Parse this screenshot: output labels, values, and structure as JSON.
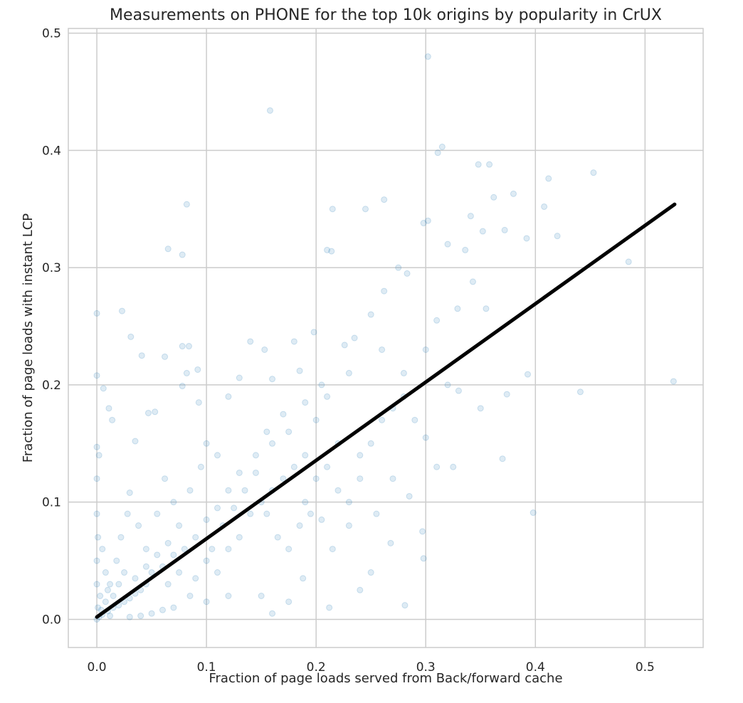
{
  "chart_data": {
    "type": "scatter",
    "title": "Measurements on PHONE for the top 10k origins by popularity in CrUX",
    "xlabel": "Fraction of page loads served from Back/forward cache",
    "ylabel": "Fraction of page loads with instant LCP",
    "xlim": [
      -0.026,
      0.553
    ],
    "ylim": [
      -0.024,
      0.504
    ],
    "xticks": [
      "0.0",
      "0.1",
      "0.2",
      "0.3",
      "0.4",
      "0.5"
    ],
    "yticks": [
      "0.0",
      "0.1",
      "0.2",
      "0.3",
      "0.4",
      "0.5"
    ],
    "grid": true,
    "marker_color": "#1f77b4",
    "marker_alpha": 0.15,
    "line_color": "#000000",
    "regression_line": [
      [
        0.0,
        0.002
      ],
      [
        0.527,
        0.354
      ]
    ],
    "points": [
      [
        0.302,
        0.48
      ],
      [
        0.158,
        0.434
      ],
      [
        0.315,
        0.403
      ],
      [
        0.311,
        0.398
      ],
      [
        0.348,
        0.388
      ],
      [
        0.358,
        0.388
      ],
      [
        0.453,
        0.381
      ],
      [
        0.412,
        0.376
      ],
      [
        0.082,
        0.354
      ],
      [
        0.262,
        0.358
      ],
      [
        0.245,
        0.35
      ],
      [
        0.215,
        0.35
      ],
      [
        0.38,
        0.363
      ],
      [
        0.362,
        0.36
      ],
      [
        0.408,
        0.352
      ],
      [
        0.42,
        0.327
      ],
      [
        0.392,
        0.325
      ],
      [
        0.065,
        0.316
      ],
      [
        0.078,
        0.311
      ],
      [
        0.21,
        0.315
      ],
      [
        0.214,
        0.314
      ],
      [
        0.302,
        0.34
      ],
      [
        0.298,
        0.338
      ],
      [
        0.0,
        0.261
      ],
      [
        0.023,
        0.263
      ],
      [
        0.031,
        0.241
      ],
      [
        0.041,
        0.225
      ],
      [
        0.062,
        0.224
      ],
      [
        0.078,
        0.233
      ],
      [
        0.084,
        0.233
      ],
      [
        0.526,
        0.203
      ],
      [
        0.441,
        0.194
      ],
      [
        0.485,
        0.305
      ],
      [
        0.398,
        0.091
      ],
      [
        0.37,
        0.137
      ],
      [
        0.281,
        0.012
      ],
      [
        0.298,
        0.052
      ],
      [
        0.297,
        0.075
      ],
      [
        0.374,
        0.192
      ],
      [
        0.393,
        0.209
      ],
      [
        0.0,
        0.208
      ],
      [
        0.006,
        0.197
      ],
      [
        0.011,
        0.18
      ],
      [
        0.014,
        0.17
      ],
      [
        0.035,
        0.152
      ],
      [
        0.047,
        0.176
      ],
      [
        0.053,
        0.177
      ],
      [
        0.341,
        0.344
      ],
      [
        0.352,
        0.331
      ],
      [
        0.372,
        0.332
      ],
      [
        0.336,
        0.315
      ],
      [
        0.343,
        0.288
      ],
      [
        0.32,
        0.32
      ],
      [
        0.329,
        0.265
      ],
      [
        0.355,
        0.265
      ],
      [
        0.31,
        0.255
      ],
      [
        0.283,
        0.295
      ],
      [
        0.275,
        0.3
      ],
      [
        0.262,
        0.28
      ],
      [
        0.25,
        0.26
      ],
      [
        0.235,
        0.24
      ],
      [
        0.226,
        0.234
      ],
      [
        0.198,
        0.245
      ],
      [
        0.18,
        0.237
      ],
      [
        0.153,
        0.23
      ],
      [
        0.14,
        0.237
      ],
      [
        0.13,
        0.206
      ],
      [
        0.092,
        0.213
      ],
      [
        0.082,
        0.21
      ],
      [
        0.078,
        0.199
      ],
      [
        0.093,
        0.185
      ],
      [
        0.12,
        0.19
      ],
      [
        0.16,
        0.205
      ],
      [
        0.185,
        0.212
      ],
      [
        0.205,
        0.2
      ],
      [
        0.23,
        0.21
      ],
      [
        0.26,
        0.23
      ],
      [
        0.28,
        0.21
      ],
      [
        0.3,
        0.23
      ],
      [
        0.32,
        0.2
      ],
      [
        0.33,
        0.195
      ],
      [
        0.35,
        0.18
      ],
      [
        0.325,
        0.13
      ],
      [
        0.31,
        0.13
      ],
      [
        0.3,
        0.155
      ],
      [
        0.285,
        0.105
      ],
      [
        0.268,
        0.065
      ],
      [
        0.25,
        0.04
      ],
      [
        0.24,
        0.025
      ],
      [
        0.212,
        0.01
      ],
      [
        0.188,
        0.035
      ],
      [
        0.16,
        0.005
      ],
      [
        0.175,
        0.015
      ],
      [
        0.15,
        0.02
      ],
      [
        0.215,
        0.06
      ],
      [
        0.23,
        0.08
      ],
      [
        0.255,
        0.09
      ],
      [
        0.27,
        0.12
      ],
      [
        0.24,
        0.14
      ],
      [
        0.22,
        0.15
      ],
      [
        0.2,
        0.17
      ],
      [
        0.19,
        0.14
      ],
      [
        0.175,
        0.16
      ],
      [
        0.16,
        0.15
      ],
      [
        0.145,
        0.14
      ],
      [
        0.13,
        0.125
      ],
      [
        0.12,
        0.11
      ],
      [
        0.11,
        0.095
      ],
      [
        0.1,
        0.085
      ],
      [
        0.09,
        0.07
      ],
      [
        0.08,
        0.06
      ],
      [
        0.07,
        0.055
      ],
      [
        0.06,
        0.045
      ],
      [
        0.05,
        0.04
      ],
      [
        0.045,
        0.03
      ],
      [
        0.04,
        0.025
      ],
      [
        0.035,
        0.022
      ],
      [
        0.03,
        0.018
      ],
      [
        0.025,
        0.015
      ],
      [
        0.02,
        0.012
      ],
      [
        0.015,
        0.01
      ],
      [
        0.01,
        0.007
      ],
      [
        0.005,
        0.004
      ],
      [
        0.002,
        0.002
      ],
      [
        0.0,
        0.0
      ],
      [
        0.001,
        0.01
      ],
      [
        0.0,
        0.03
      ],
      [
        0.0,
        0.05
      ],
      [
        0.001,
        0.07
      ],
      [
        0.0,
        0.09
      ],
      [
        0.0,
        0.12
      ],
      [
        0.0,
        0.147
      ],
      [
        0.002,
        0.14
      ],
      [
        0.005,
        0.06
      ],
      [
        0.008,
        0.04
      ],
      [
        0.012,
        0.03
      ],
      [
        0.018,
        0.05
      ],
      [
        0.022,
        0.07
      ],
      [
        0.028,
        0.09
      ],
      [
        0.03,
        0.108
      ],
      [
        0.038,
        0.08
      ],
      [
        0.045,
        0.06
      ],
      [
        0.055,
        0.09
      ],
      [
        0.062,
        0.12
      ],
      [
        0.07,
        0.1
      ],
      [
        0.075,
        0.08
      ],
      [
        0.085,
        0.11
      ],
      [
        0.095,
        0.13
      ],
      [
        0.1,
        0.05
      ],
      [
        0.11,
        0.04
      ],
      [
        0.12,
        0.06
      ],
      [
        0.13,
        0.07
      ],
      [
        0.14,
        0.09
      ],
      [
        0.15,
        0.1
      ],
      [
        0.16,
        0.11
      ],
      [
        0.17,
        0.12
      ],
      [
        0.18,
        0.13
      ],
      [
        0.19,
        0.1
      ],
      [
        0.2,
        0.12
      ],
      [
        0.21,
        0.13
      ],
      [
        0.22,
        0.11
      ],
      [
        0.23,
        0.1
      ],
      [
        0.24,
        0.12
      ],
      [
        0.25,
        0.15
      ],
      [
        0.26,
        0.17
      ],
      [
        0.27,
        0.18
      ],
      [
        0.28,
        0.19
      ],
      [
        0.29,
        0.17
      ],
      [
        0.12,
        0.02
      ],
      [
        0.1,
        0.015
      ],
      [
        0.085,
        0.02
      ],
      [
        0.07,
        0.01
      ],
      [
        0.06,
        0.008
      ],
      [
        0.05,
        0.005
      ],
      [
        0.04,
        0.003
      ],
      [
        0.03,
        0.002
      ],
      [
        0.065,
        0.03
      ],
      [
        0.075,
        0.04
      ],
      [
        0.09,
        0.035
      ],
      [
        0.105,
        0.06
      ],
      [
        0.115,
        0.08
      ],
      [
        0.125,
        0.095
      ],
      [
        0.135,
        0.11
      ],
      [
        0.145,
        0.125
      ],
      [
        0.155,
        0.09
      ],
      [
        0.165,
        0.07
      ],
      [
        0.175,
        0.06
      ],
      [
        0.185,
        0.08
      ],
      [
        0.195,
        0.09
      ],
      [
        0.205,
        0.085
      ],
      [
        0.155,
        0.16
      ],
      [
        0.17,
        0.175
      ],
      [
        0.19,
        0.185
      ],
      [
        0.21,
        0.19
      ],
      [
        0.1,
        0.15
      ],
      [
        0.11,
        0.14
      ],
      [
        0.02,
        0.03
      ],
      [
        0.025,
        0.04
      ],
      [
        0.035,
        0.035
      ],
      [
        0.045,
        0.045
      ],
      [
        0.055,
        0.055
      ],
      [
        0.065,
        0.065
      ],
      [
        0.015,
        0.02
      ],
      [
        0.01,
        0.025
      ],
      [
        0.008,
        0.015
      ],
      [
        0.004,
        0.008
      ],
      [
        0.003,
        0.02
      ],
      [
        0.012,
        0.003
      ]
    ]
  }
}
